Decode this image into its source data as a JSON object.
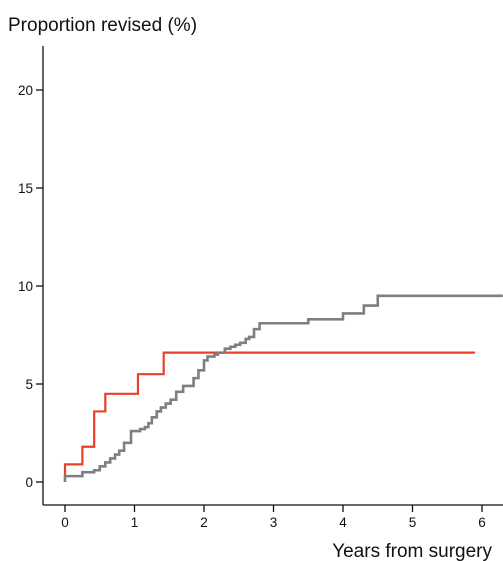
{
  "chart_data": {
    "type": "line",
    "title": "",
    "ylabel": "Proportion revised (%)",
    "xlabel": "Years from surgery",
    "xlim": [
      -0.3,
      6.3
    ],
    "ylim": [
      -1.3,
      22
    ],
    "xticks": [
      0,
      1,
      2,
      3,
      4,
      5,
      6
    ],
    "yticks": [
      0,
      5,
      10,
      15,
      20
    ],
    "grid": false,
    "legend": "none",
    "colors": {
      "red_series": "#e8402a",
      "gray_series": "#7f7f83",
      "axis": "#111111"
    },
    "series": [
      {
        "color": "#e8402a",
        "step": true,
        "x": [
          0,
          0.25,
          0.42,
          0.58,
          1.05,
          1.42,
          5.9
        ],
        "y": [
          0.9,
          1.8,
          3.6,
          4.5,
          5.5,
          6.6,
          6.6
        ]
      },
      {
        "color": "#7f7f83",
        "step": true,
        "x": [
          0,
          0.25,
          0.42,
          0.5,
          0.58,
          0.65,
          0.72,
          0.78,
          0.85,
          0.95,
          1.08,
          1.15,
          1.2,
          1.25,
          1.32,
          1.38,
          1.45,
          1.52,
          1.6,
          1.7,
          1.85,
          1.92,
          2.0,
          2.05,
          2.15,
          2.2,
          2.3,
          2.38,
          2.45,
          2.52,
          2.6,
          2.65,
          2.72,
          2.8,
          3.5,
          4.0,
          4.3,
          4.5,
          6.3
        ],
        "y": [
          0.3,
          0.5,
          0.6,
          0.8,
          1.0,
          1.2,
          1.4,
          1.6,
          2.0,
          2.6,
          2.7,
          2.8,
          3.0,
          3.3,
          3.6,
          3.8,
          4.0,
          4.2,
          4.6,
          4.9,
          5.3,
          5.7,
          6.2,
          6.4,
          6.5,
          6.6,
          6.8,
          6.9,
          7.0,
          7.1,
          7.3,
          7.4,
          7.8,
          8.1,
          8.3,
          8.6,
          9.0,
          9.5,
          9.5
        ]
      }
    ]
  }
}
